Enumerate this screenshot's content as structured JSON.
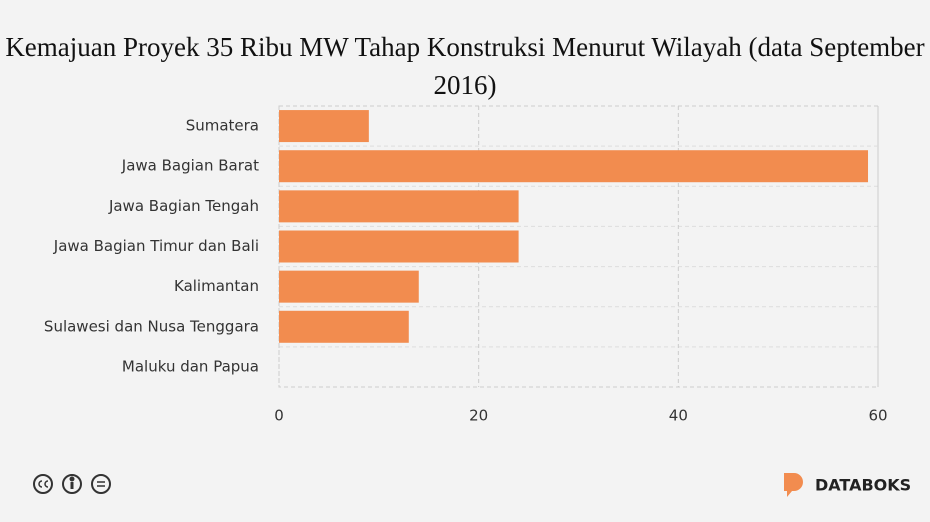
{
  "chart_data": {
    "type": "hbar",
    "title": "Kemajuan Proyek 35 Ribu MW Tahap Konstruksi Menurut Wilayah (data September 2016)",
    "categories": [
      "Sumatera",
      "Jawa Bagian Barat",
      "Jawa Bagian Tengah",
      "Jawa Bagian Timur dan Bali",
      "Kalimantan",
      "Sulawesi dan Nusa Tenggara",
      "Maluku dan Papua"
    ],
    "values": [
      9,
      59,
      24,
      24,
      14,
      13,
      0
    ],
    "color": "#f28c4f",
    "xlim": [
      0,
      60
    ],
    "xticks": [
      0,
      20,
      40,
      60
    ],
    "grid": true
  },
  "footer": {
    "brand": "DATABOKS"
  }
}
